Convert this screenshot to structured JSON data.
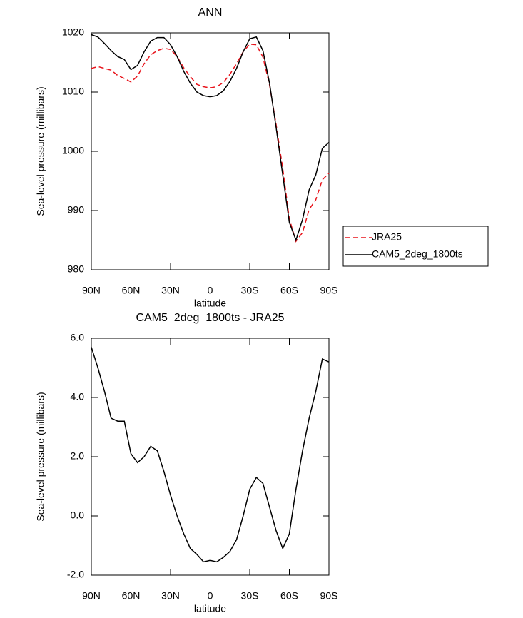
{
  "chart_data": [
    {
      "type": "line",
      "title": "ANN",
      "xlabel": "latitude",
      "ylabel": "Sea-level pressure (millibars)",
      "x": [
        90,
        85,
        80,
        75,
        70,
        65,
        60,
        55,
        50,
        45,
        40,
        35,
        30,
        25,
        20,
        15,
        10,
        5,
        0,
        -5,
        -10,
        -15,
        -20,
        -25,
        -30,
        -35,
        -40,
        -45,
        -50,
        -55,
        -60,
        -65,
        -70,
        -75,
        -80,
        -85,
        -90
      ],
      "series": [
        {
          "name": "JRA25",
          "color": "#e8141c",
          "dash": "dashed",
          "values": [
            1014.0,
            1014.3,
            1014.0,
            1013.7,
            1012.8,
            1012.3,
            1011.7,
            1012.7,
            1014.8,
            1016.3,
            1017.0,
            1017.4,
            1017.2,
            1016.0,
            1014.1,
            1012.6,
            1011.3,
            1010.9,
            1010.7,
            1010.9,
            1011.6,
            1013.0,
            1014.8,
            1016.8,
            1018.1,
            1018.0,
            1015.9,
            1011.2,
            1004.5,
            997.1,
            988.6,
            984.8,
            986.3,
            990.2,
            991.8,
            995.2,
            996.3
          ]
        },
        {
          "name": "CAM5_2deg_1800ts",
          "color": "#000000",
          "dash": "solid",
          "values": [
            1019.7,
            1019.3,
            1018.2,
            1017.0,
            1016.0,
            1015.5,
            1013.8,
            1014.5,
            1016.8,
            1018.6,
            1019.2,
            1019.2,
            1018.0,
            1016.0,
            1013.5,
            1011.5,
            1010.0,
            1009.4,
            1009.2,
            1009.4,
            1010.2,
            1011.8,
            1014.0,
            1016.8,
            1019.0,
            1019.3,
            1017.0,
            1011.5,
            1004.0,
            996.0,
            988.0,
            985.0,
            988.5,
            993.5,
            996.0,
            1000.5,
            1001.5
          ]
        }
      ],
      "xlim": [
        90,
        -90
      ],
      "xticks": [
        {
          "value": 90,
          "label": "90N"
        },
        {
          "value": 60,
          "label": "60N"
        },
        {
          "value": 30,
          "label": "30N"
        },
        0,
        {
          "value": -30,
          "label": "30S"
        },
        {
          "value": -60,
          "label": "60S"
        },
        {
          "value": -90,
          "label": "90S"
        }
      ],
      "ylim": [
        980,
        1020
      ],
      "yticks": [
        980,
        990,
        1000,
        1010,
        1020
      ],
      "legend": "right"
    },
    {
      "type": "line",
      "title": "CAM5_2deg_1800ts - JRA25",
      "xlabel": "latitude",
      "ylabel": "Sea-level pressure (millibars)",
      "x": [
        90,
        85,
        80,
        75,
        70,
        65,
        60,
        55,
        50,
        45,
        40,
        35,
        30,
        25,
        20,
        15,
        10,
        5,
        0,
        -5,
        -10,
        -15,
        -20,
        -25,
        -30,
        -35,
        -40,
        -45,
        -50,
        -55,
        -60,
        -65,
        -70,
        -75,
        -80,
        -85,
        -90
      ],
      "values": [
        5.7,
        5.0,
        4.2,
        3.3,
        3.2,
        3.2,
        2.1,
        1.8,
        2.0,
        2.35,
        2.2,
        1.5,
        0.7,
        0.0,
        -0.6,
        -1.1,
        -1.3,
        -1.55,
        -1.5,
        -1.55,
        -1.4,
        -1.2,
        -0.8,
        0.0,
        0.9,
        1.3,
        1.1,
        0.3,
        -0.5,
        -1.1,
        -0.6,
        0.9,
        2.2,
        3.3,
        4.2,
        5.3,
        5.2
      ],
      "color": "#000000",
      "xlim": [
        90,
        -90
      ],
      "xticks": [
        {
          "value": 90,
          "label": "90N"
        },
        {
          "value": 60,
          "label": "60N"
        },
        {
          "value": 30,
          "label": "30N"
        },
        0,
        {
          "value": -30,
          "label": "30S"
        },
        {
          "value": -60,
          "label": "60S"
        },
        {
          "value": -90,
          "label": "90S"
        }
      ],
      "ylim": [
        -2,
        6
      ],
      "yticks": [
        {
          "value": -2,
          "label": "-2.0"
        },
        {
          "value": 0,
          "label": "0.0"
        },
        {
          "value": 2,
          "label": "2.0"
        },
        {
          "value": 4,
          "label": "4.0"
        },
        {
          "value": 6,
          "label": "6.0"
        }
      ]
    }
  ]
}
